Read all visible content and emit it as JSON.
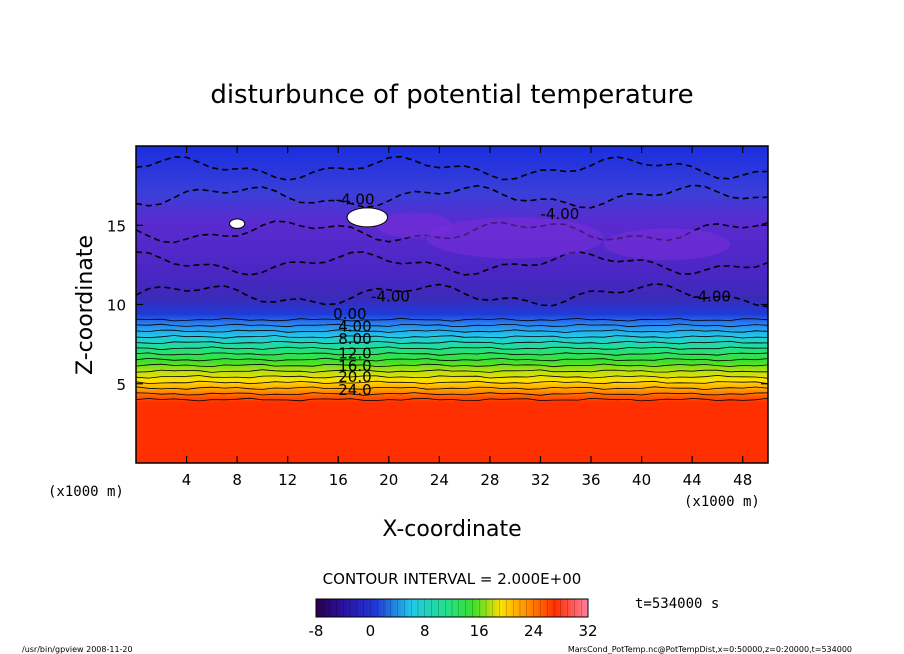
{
  "chart_data": {
    "type": "heatmap",
    "title": "disturbunce of potential temperature",
    "xlabel": "X-coordinate",
    "ylabel": "Z-coordinate",
    "x_unit_left": "(x1000 m)",
    "x_unit_right": "(x1000 m)",
    "xlim": [
      0,
      50
    ],
    "ylim": [
      0,
      20
    ],
    "x_ticks": [
      4,
      8,
      12,
      16,
      20,
      24,
      28,
      32,
      36,
      40,
      44,
      48
    ],
    "y_ticks": [
      5,
      10,
      15
    ],
    "contour_labels": [
      {
        "text": "-4.00",
        "x": 15.8,
        "y": 16.3
      },
      {
        "text": "-4.00",
        "x": 32.0,
        "y": 15.4
      },
      {
        "text": "-4.00",
        "x": 18.6,
        "y": 10.2
      },
      {
        "text": "-4.00",
        "x": 44.0,
        "y": 10.2
      },
      {
        "text": "0.00",
        "x": 15.6,
        "y": 9.1
      },
      {
        "text": "4.00",
        "x": 16.0,
        "y": 8.3
      },
      {
        "text": "8.00",
        "x": 16.0,
        "y": 7.5
      },
      {
        "text": "12.0",
        "x": 16.0,
        "y": 6.6
      },
      {
        "text": "16.0",
        "x": 16.0,
        "y": 5.8
      },
      {
        "text": "20.0",
        "x": 16.0,
        "y": 5.1
      },
      {
        "text": "24.0",
        "x": 16.0,
        "y": 4.3
      }
    ],
    "contour_interval_label": "CONTOUR INTERVAL = 2.000E+00",
    "colorbar": {
      "min": -8,
      "max": 32,
      "ticks": [
        "-8",
        "0",
        "8",
        "16",
        "24",
        "32"
      ]
    },
    "time_label": "t=534000 s"
  },
  "footer": {
    "left": "/usr/bin/gpview  2008-11-20",
    "right": "MarsCond_PotTemp.nc@PotTempDist,x=0:50000,z=0:20000,t=534000"
  }
}
